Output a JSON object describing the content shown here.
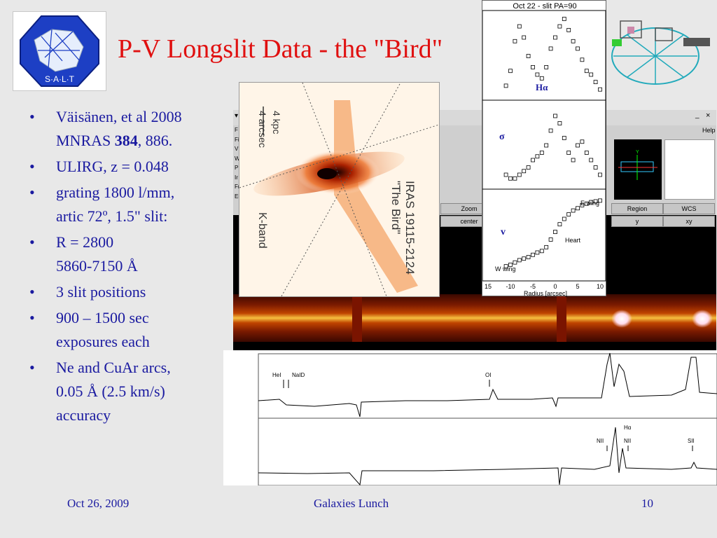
{
  "logo": {
    "text": "S·A·L·T",
    "icon": "salt-logo"
  },
  "title": "P-V Longslit Data - the \"Bird\"",
  "bullets": [
    {
      "line1": "Väisänen, et al 2008",
      "line2_pre": "MNRAS ",
      "line2_bold": "384",
      "line2_post": ", 886."
    },
    {
      "line1": "ULIRG, z = 0.048"
    },
    {
      "line1": "grating 1800 l/mm,",
      "line2": "artic 72º, 1.5\" slit:"
    },
    {
      "line1": "R = 2800",
      "line2": "5860-7150 Å"
    },
    {
      "line1": "3 slit positions"
    },
    {
      "line1": "900 – 1500 sec",
      "line2": "exposures each"
    },
    {
      "line1": "Ne and CuAr arcs,",
      "line2": "0.05 Å (2.5 km/s)",
      "line3": "accuracy"
    }
  ],
  "footer": {
    "date": "Oct 26, 2009",
    "center": "Galaxies Lunch",
    "page": "10"
  },
  "ds9": {
    "menu_side": [
      "F",
      "Fi",
      "V",
      "W",
      "P",
      "Ir",
      "Fr",
      "Ei"
    ],
    "help": "Help",
    "buttons_row1": [
      "Zoom",
      "Region",
      "WCS"
    ],
    "buttons_row2": [
      "center",
      "y",
      "xy"
    ],
    "window_controls": [
      "▾",
      "_",
      "×"
    ]
  },
  "galaxy": {
    "scale_top": "4 arcsec",
    "scale_bottom": "4 kpc",
    "band": "K-band",
    "name1": "IRAS 19115-2124",
    "name2": "\"The Bird\""
  },
  "pv": {
    "title": "Oct 22 - slit PA=90",
    "panel_labels": [
      "Hα",
      "σ",
      "v"
    ],
    "annotations": [
      "E wing",
      "Heart",
      "W wing"
    ],
    "xlabel": "Radius [arcsec]",
    "xticks": [
      "15",
      "-10",
      "-5",
      "0",
      "5",
      "10"
    ]
  },
  "spectrum": {
    "top_labels": [
      "HeI",
      "NaID",
      "OI"
    ],
    "bottom_labels": [
      "NII",
      "Hα",
      "NII",
      "SII"
    ]
  },
  "chart_data": [
    {
      "type": "scatter",
      "title": "Oct 22 - slit PA=90",
      "series": [
        {
          "name": "Hα",
          "x": [
            -11,
            -10,
            -9,
            -8,
            -7,
            -6,
            -5,
            -4,
            -3,
            -2,
            -1,
            0,
            1,
            2,
            3,
            4,
            5,
            6,
            7,
            8,
            9,
            10
          ],
          "values": [
            0.1,
            0.3,
            0.7,
            0.9,
            0.75,
            0.5,
            0.35,
            0.25,
            0.2,
            0.35,
            0.6,
            0.75,
            0.9,
            1.0,
            0.85,
            0.7,
            0.6,
            0.45,
            0.3,
            0.25,
            0.15,
            0.05
          ]
        },
        {
          "name": "σ",
          "x": [
            -11,
            -10,
            -9,
            -8,
            -7,
            -6,
            -5,
            -4,
            -3,
            -2,
            -1,
            0,
            1,
            2,
            3,
            4,
            5,
            6,
            7,
            8,
            9,
            10
          ],
          "values": [
            0.1,
            0.05,
            0.05,
            0.1,
            0.15,
            0.2,
            0.3,
            0.35,
            0.4,
            0.5,
            0.7,
            0.9,
            0.8,
            0.6,
            0.4,
            0.3,
            0.5,
            0.55,
            0.4,
            0.3,
            0.2,
            0.1
          ]
        },
        {
          "name": "v",
          "x": [
            -11,
            -10,
            -9,
            -8,
            -7,
            -6,
            -5,
            -4,
            -3,
            -2,
            -1,
            0,
            1,
            2,
            3,
            4,
            5,
            6,
            7,
            8,
            9,
            10
          ],
          "values": [
            0.1,
            0.12,
            0.15,
            0.18,
            0.2,
            0.22,
            0.25,
            0.28,
            0.3,
            0.35,
            0.45,
            0.55,
            0.65,
            0.72,
            0.78,
            0.83,
            0.86,
            0.9,
            0.92,
            0.94,
            0.95,
            0.96
          ]
        }
      ],
      "xlabel": "Radius [arcsec]",
      "xlim": [
        -15,
        10
      ]
    }
  ]
}
